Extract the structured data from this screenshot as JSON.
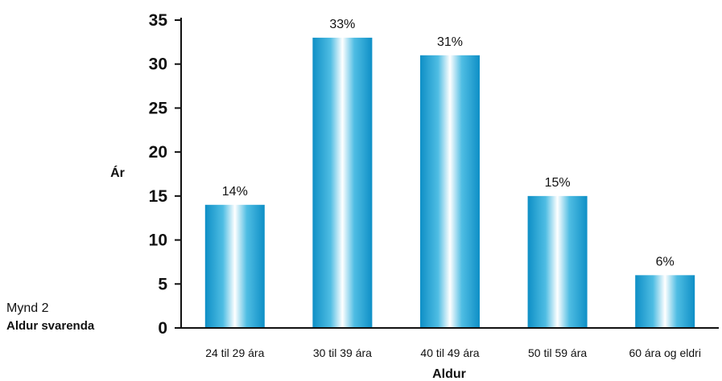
{
  "chart_data": {
    "type": "bar",
    "categories": [
      "24 til 29 ára",
      "30 til 39 ára",
      "40 til 49 ára",
      "50 til 59 ára",
      "60 ára og eldri"
    ],
    "values": [
      14,
      33,
      31,
      15,
      6
    ],
    "data_labels": [
      "14%",
      "33%",
      "31%",
      "15%",
      "6%"
    ],
    "xlabel": "Aldur",
    "ylabel": "Ár",
    "ylim": [
      0,
      35
    ],
    "yticks": [
      0,
      5,
      10,
      15,
      20,
      25,
      30,
      35
    ],
    "grid": false,
    "bar_color": "#1aa3d8"
  },
  "caption": {
    "figure_number": "Mynd 2",
    "figure_title": "Aldur svarenda"
  }
}
